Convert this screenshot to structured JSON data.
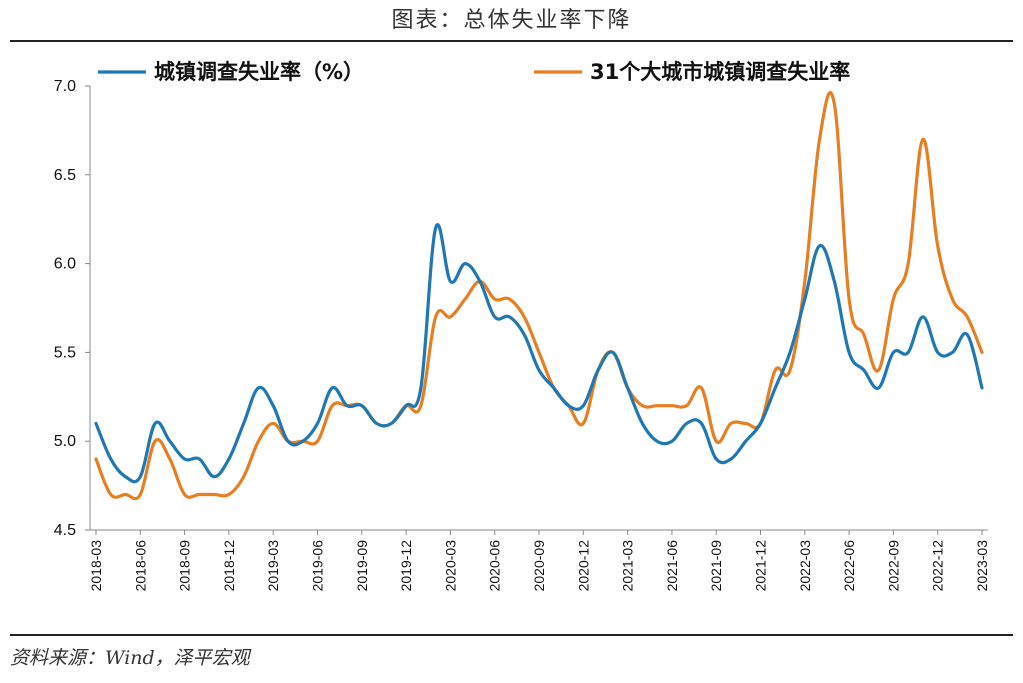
{
  "caption": "图表：总体失业率下降",
  "source": "资料来源：Wind，泽平宏观",
  "chart_data": {
    "type": "line",
    "title": "",
    "ylim": [
      4.5,
      7.0
    ],
    "yticks": [
      "4.5",
      "5.0",
      "5.5",
      "6.0",
      "6.5",
      "7.0"
    ],
    "x": [
      "2018-03",
      "2018-04",
      "2018-05",
      "2018-06",
      "2018-07",
      "2018-08",
      "2018-09",
      "2018-10",
      "2018-11",
      "2018-12",
      "2019-01",
      "2019-02",
      "2019-03",
      "2019-04",
      "2019-05",
      "2019-06",
      "2019-07",
      "2019-08",
      "2019-09",
      "2019-10",
      "2019-11",
      "2019-12",
      "2020-01",
      "2020-02",
      "2020-03",
      "2020-04",
      "2020-05",
      "2020-06",
      "2020-07",
      "2020-08",
      "2020-09",
      "2020-10",
      "2020-11",
      "2020-12",
      "2021-01",
      "2021-02",
      "2021-03",
      "2021-04",
      "2021-05",
      "2021-06",
      "2021-07",
      "2021-08",
      "2021-09",
      "2021-10",
      "2021-11",
      "2021-12",
      "2022-01",
      "2022-02",
      "2022-03",
      "2022-04",
      "2022-05",
      "2022-06",
      "2022-07",
      "2022-08",
      "2022-09",
      "2022-10",
      "2022-11",
      "2022-12",
      "2023-01",
      "2023-02",
      "2023-03"
    ],
    "xticks": [
      "2018-03",
      "2018-06",
      "2018-09",
      "2018-12",
      "2019-03",
      "2019-06",
      "2019-09",
      "2019-12",
      "2020-03",
      "2020-06",
      "2020-09",
      "2020-12",
      "2021-03",
      "2021-06",
      "2021-09",
      "2021-12",
      "2022-03",
      "2022-06",
      "2022-09",
      "2022-12",
      "2023-03"
    ],
    "series": [
      {
        "name": "城镇调查失业率（%）",
        "color": "#1f77b4",
        "values": [
          5.1,
          4.9,
          4.8,
          4.8,
          5.1,
          5.0,
          4.9,
          4.9,
          4.8,
          4.9,
          5.1,
          5.3,
          5.2,
          5.0,
          5.0,
          5.1,
          5.3,
          5.2,
          5.2,
          5.1,
          5.1,
          5.2,
          5.3,
          6.2,
          5.9,
          6.0,
          5.9,
          5.7,
          5.7,
          5.6,
          5.4,
          5.3,
          5.2,
          5.2,
          5.4,
          5.5,
          5.3,
          5.1,
          5.0,
          5.0,
          5.1,
          5.1,
          4.9,
          4.9,
          5.0,
          5.1,
          5.3,
          5.5,
          5.8,
          6.1,
          5.9,
          5.5,
          5.4,
          5.3,
          5.5,
          5.5,
          5.7,
          5.5,
          5.5,
          5.6,
          5.3
        ]
      },
      {
        "name": "31个大城市城镇调查失业率",
        "color": "#e67e22",
        "values": [
          4.9,
          4.7,
          4.7,
          4.7,
          5.0,
          4.9,
          4.7,
          4.7,
          4.7,
          4.7,
          4.8,
          5.0,
          5.1,
          5.0,
          5.0,
          5.0,
          5.2,
          5.2,
          5.2,
          5.1,
          5.1,
          5.2,
          5.2,
          5.7,
          5.7,
          5.8,
          5.9,
          5.8,
          5.8,
          5.7,
          5.5,
          5.3,
          5.2,
          5.1,
          5.4,
          5.5,
          5.3,
          5.2,
          5.2,
          5.2,
          5.2,
          5.3,
          5.0,
          5.1,
          5.1,
          5.1,
          5.4,
          5.4,
          5.9,
          6.7,
          6.9,
          5.8,
          5.6,
          5.4,
          5.8,
          6.0,
          6.7,
          6.1,
          5.8,
          5.7,
          5.5
        ]
      }
    ]
  }
}
